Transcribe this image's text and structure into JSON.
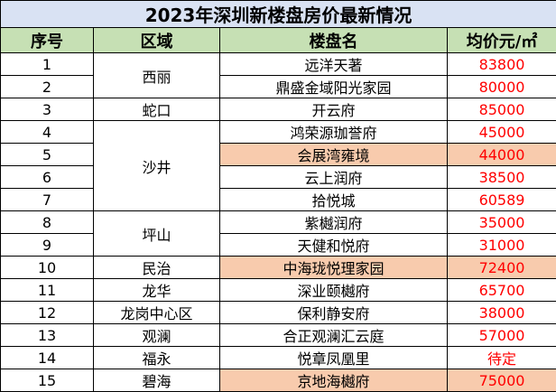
{
  "title": "2023年深圳新楼盘房价最新情况",
  "headers": [
    "序号",
    "区域",
    "楼盘名",
    "均价元/㎡"
  ],
  "rows": [
    {
      "no": "1",
      "name": "远洋天著",
      "price": "83800"
    },
    {
      "no": "2",
      "name": "鼎盛金域阳光家园",
      "price": "80000"
    },
    {
      "no": "3",
      "name": "开云府",
      "price": "85000"
    },
    {
      "no": "4",
      "name": "鸿荣源珈誉府",
      "price": "45000"
    },
    {
      "no": "5",
      "name": "会展湾雍境",
      "price": "44000"
    },
    {
      "no": "6",
      "name": "云上润府",
      "price": "38500"
    },
    {
      "no": "7",
      "name": "拾悦城",
      "price": "60589"
    },
    {
      "no": "8",
      "name": "紫樾润府",
      "price": "35000"
    },
    {
      "no": "9",
      "name": "天健和悦府",
      "price": "31000"
    },
    {
      "no": "10",
      "name": "中海珑悦理家园",
      "price": "72400"
    },
    {
      "no": "11",
      "name": "深业颐樾府",
      "price": "65700"
    },
    {
      "no": "12",
      "name": "保利静安府",
      "price": "38000"
    },
    {
      "no": "13",
      "name": "合正观澜汇云庭",
      "price": "57000"
    },
    {
      "no": "14",
      "name": "悦章凤凰里",
      "price": "待定"
    },
    {
      "no": "15",
      "name": "京地海樾府",
      "price": "75000"
    }
  ],
  "regions": {
    "xili": "西丽",
    "shekou": "蛇口",
    "shajing": "沙井",
    "pingshan": "坪山",
    "minzhi": "民治",
    "longhua": "龙华",
    "longgang": "龙岗中心区",
    "guanlan": "观澜",
    "fuyong": "福永",
    "bihai": "碧海"
  },
  "colors": {
    "title_bg": "#d9e2f3",
    "header_bg": "#c6e0b4",
    "highlight_bg": "#f8cbad",
    "price_text": "#ff0000"
  }
}
